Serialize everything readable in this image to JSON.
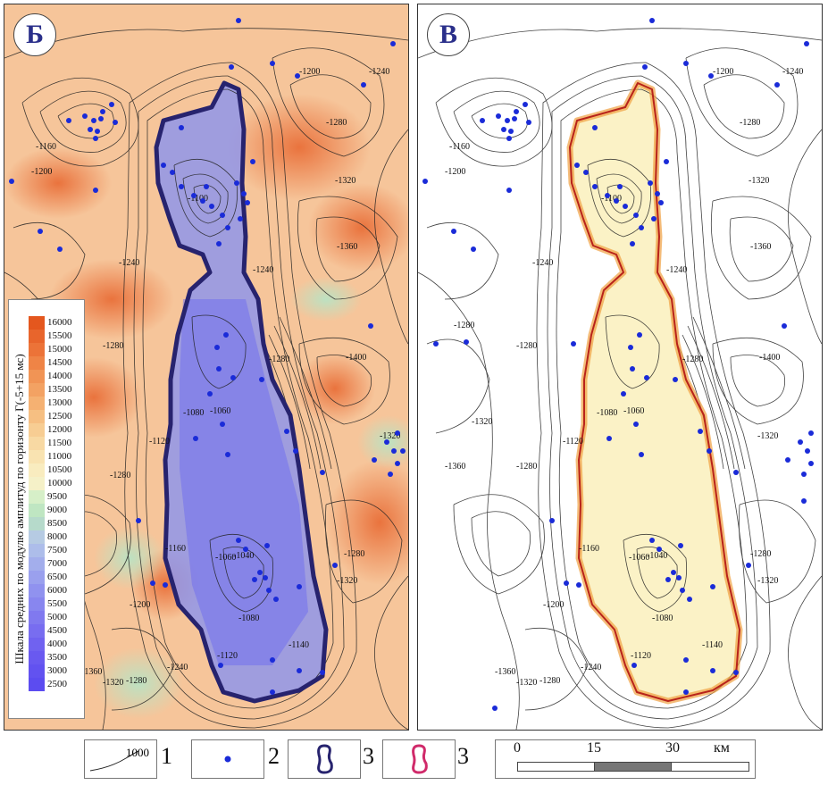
{
  "panels": {
    "left": {
      "label": "Б"
    },
    "right": {
      "label": "В"
    }
  },
  "contours": [
    "-1040",
    "-1060",
    "-1080",
    "-1100",
    "-1120",
    "-1140",
    "-1160",
    "-1200",
    "-1240",
    "-1280",
    "-1320",
    "-1360",
    "-1400"
  ],
  "scale": {
    "title": "Шкала средних по модулю амплитуд по горизонту Г(-5+15 мс)",
    "values": [
      "16000",
      "15500",
      "15000",
      "14500",
      "14000",
      "13500",
      "13000",
      "12500",
      "12000",
      "11500",
      "11000",
      "10500",
      "10000",
      "9500",
      "9000",
      "8500",
      "8000",
      "7500",
      "7000",
      "6500",
      "6000",
      "5500",
      "5000",
      "4500",
      "4000",
      "3500",
      "3000",
      "2500"
    ],
    "colors": [
      "#e4571e",
      "#e8652c",
      "#ec7338",
      "#ef8446",
      "#f19455",
      "#f3a263",
      "#f5b172",
      "#f6bf82",
      "#f7cd93",
      "#f8d9a3",
      "#f9e3b1",
      "#f9ecbf",
      "#f5f1c8",
      "#d6efc8",
      "#bfe6c2",
      "#b6dacb",
      "#b6cbe3",
      "#adbdea",
      "#a3aeec",
      "#9aa0ee",
      "#9092ef",
      "#8886ef",
      "#8079ef",
      "#786df0",
      "#7062f0",
      "#6959f0",
      "#6252f0",
      "#5c4cf0"
    ]
  },
  "legend": {
    "contour_sample": "1000",
    "items": [
      "1",
      "2",
      "3",
      "3"
    ]
  },
  "km_scale": {
    "ticks": [
      "0",
      "15",
      "30"
    ],
    "unit": "км"
  }
}
